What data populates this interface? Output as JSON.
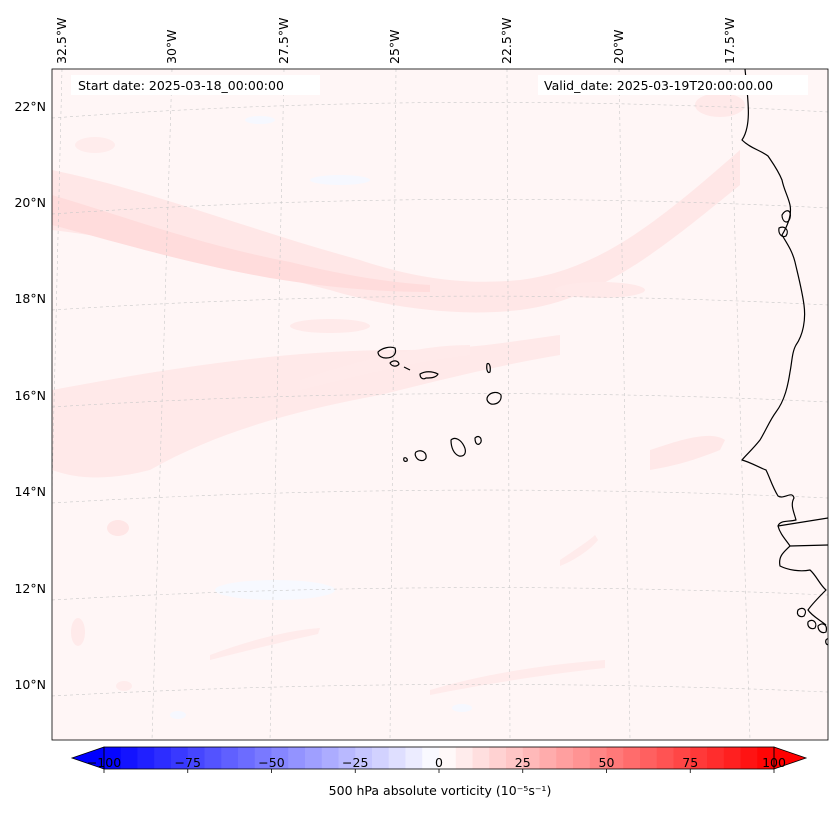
{
  "map": {
    "start_date": "Start date: 2025-03-18_00:00:00",
    "valid_date": "Valid_date: 2025-03-19T20:00:00.00",
    "lon_labels": [
      "32.5°W",
      "30°W",
      "27.5°W",
      "25°W",
      "22.5°W",
      "20°W",
      "17.5°W"
    ],
    "lat_labels": [
      "22°N",
      "20°N",
      "18°N",
      "16°N",
      "14°N",
      "12°N",
      "10°N"
    ],
    "field_colors": {
      "background": "#fff6f6",
      "weak_positive": "#ffe6e6",
      "moderate_positive": "#ffdcdc",
      "weak_negative": "#f6f8ff"
    },
    "coastline_color": "#000000"
  },
  "colorbar": {
    "label": "500 hPa absolute vorticity (10⁻⁵s⁻¹)",
    "ticks": [
      "−100",
      "−75",
      "−50",
      "−25",
      "0",
      "25",
      "50",
      "75",
      "100"
    ],
    "min": -100,
    "max": 100,
    "step": 5,
    "cmap": "bwr",
    "extend": "both"
  }
}
